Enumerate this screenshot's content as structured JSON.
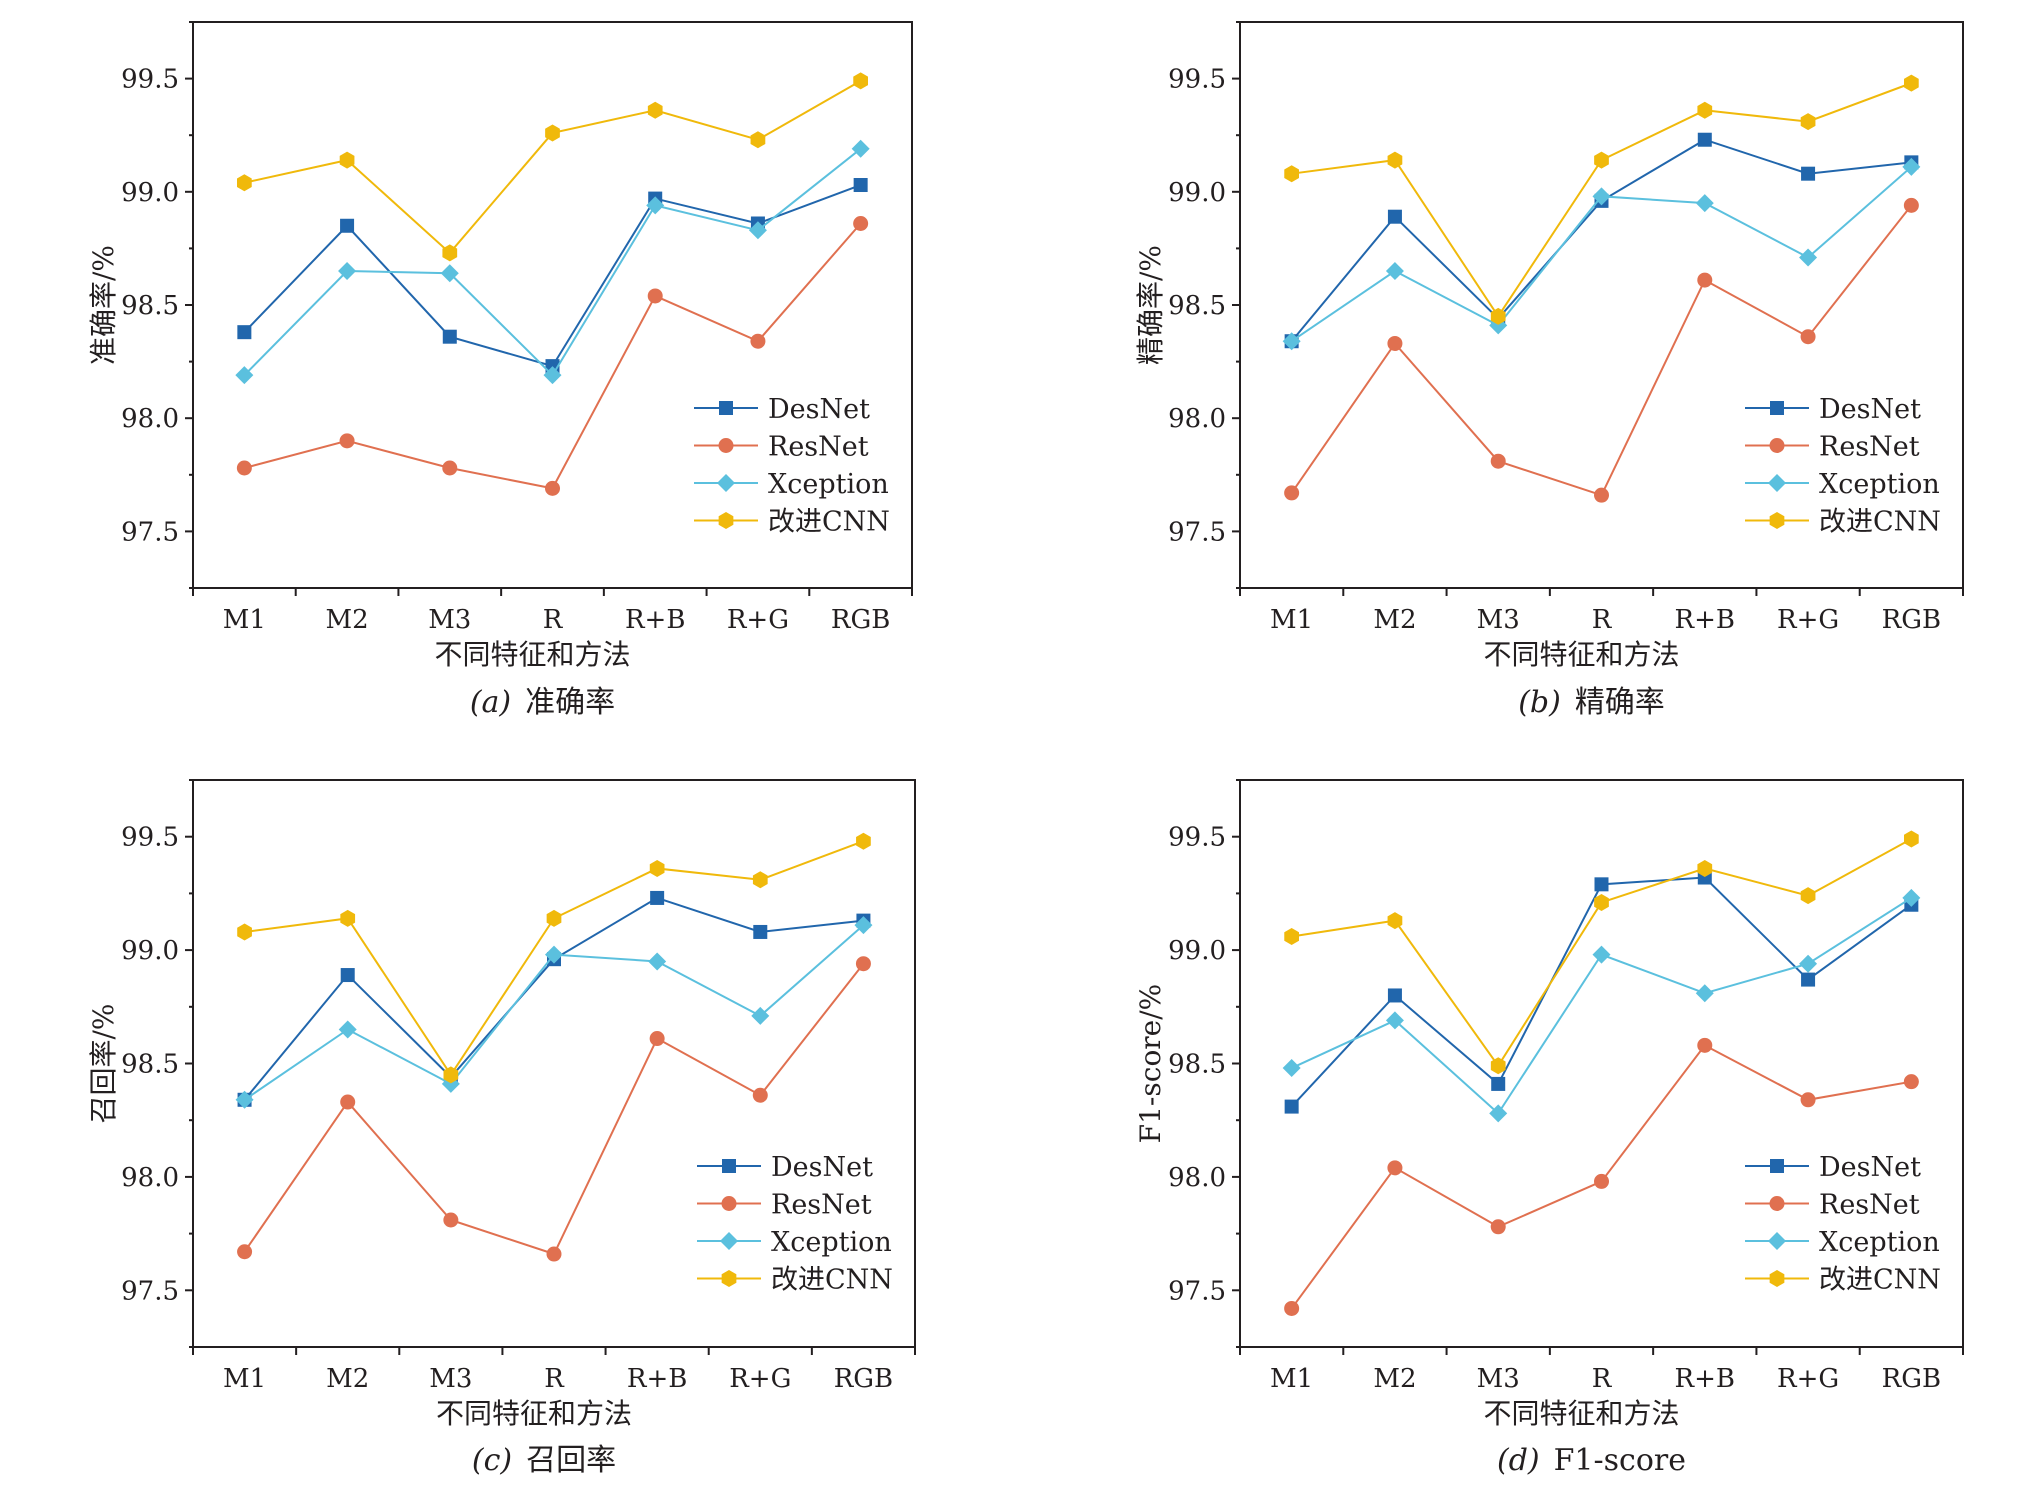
{
  "figure": {
    "series_colors": {
      "DesNet": "#2166ac",
      "ResNet": "#e07050",
      "Xception": "#5bc0de",
      "改进CNN": "#f0b90b"
    }
  },
  "chart_data": [
    {
      "type": "line",
      "caption_letter": "(a)",
      "caption_text": "准确率",
      "xlabel": "不同特征和方法",
      "ylabel": "准确率/%",
      "categories": [
        "M1",
        "M2",
        "M3",
        "R",
        "R+B",
        "R+G",
        "RGB"
      ],
      "ylim": [
        97.25,
        99.75
      ],
      "yticks": [
        "97.5",
        "98.0",
        "98.5",
        "99.0",
        "99.5"
      ],
      "legend_position": "bottom-right",
      "series": [
        {
          "name": "DesNet",
          "marker": "square",
          "values": [
            98.38,
            98.85,
            98.36,
            98.23,
            98.97,
            98.86,
            99.03
          ]
        },
        {
          "name": "ResNet",
          "marker": "circle",
          "values": [
            97.78,
            97.9,
            97.78,
            97.69,
            98.54,
            98.34,
            98.86
          ]
        },
        {
          "name": "Xception",
          "marker": "diamond",
          "values": [
            98.19,
            98.65,
            98.64,
            98.19,
            98.94,
            98.83,
            99.19
          ]
        },
        {
          "name": "改进CNN",
          "marker": "hexagon",
          "values": [
            99.04,
            99.14,
            98.73,
            99.26,
            99.36,
            99.23,
            99.49
          ]
        }
      ]
    },
    {
      "type": "line",
      "caption_letter": "(b)",
      "caption_text": "精确率",
      "xlabel": "不同特征和方法",
      "ylabel": "精确率/%",
      "categories": [
        "M1",
        "M2",
        "M3",
        "R",
        "R+B",
        "R+G",
        "RGB"
      ],
      "ylim": [
        97.25,
        99.75
      ],
      "yticks": [
        "97.5",
        "98.0",
        "98.5",
        "99.0",
        "99.5"
      ],
      "legend_position": "bottom-right",
      "series": [
        {
          "name": "DesNet",
          "marker": "square",
          "values": [
            98.34,
            98.89,
            98.44,
            98.96,
            99.23,
            99.08,
            99.13
          ]
        },
        {
          "name": "ResNet",
          "marker": "circle",
          "values": [
            97.67,
            98.33,
            97.81,
            97.66,
            98.61,
            98.36,
            98.94
          ]
        },
        {
          "name": "Xception",
          "marker": "diamond",
          "values": [
            98.34,
            98.65,
            98.41,
            98.98,
            98.95,
            98.71,
            99.11
          ]
        },
        {
          "name": "改进CNN",
          "marker": "hexagon",
          "values": [
            99.08,
            99.14,
            98.45,
            99.14,
            99.36,
            99.31,
            99.48
          ]
        }
      ]
    },
    {
      "type": "line",
      "caption_letter": "(c)",
      "caption_text": "召回率",
      "xlabel": "不同特征和方法",
      "ylabel": "召回率/%",
      "categories": [
        "M1",
        "M2",
        "M3",
        "R",
        "R+B",
        "R+G",
        "RGB"
      ],
      "ylim": [
        97.25,
        99.75
      ],
      "yticks": [
        "97.5",
        "98.0",
        "98.5",
        "99.0",
        "99.5"
      ],
      "legend_position": "bottom-right",
      "series": [
        {
          "name": "DesNet",
          "marker": "square",
          "values": [
            98.34,
            98.89,
            98.44,
            98.96,
            99.23,
            99.08,
            99.13
          ]
        },
        {
          "name": "ResNet",
          "marker": "circle",
          "values": [
            97.67,
            98.33,
            97.81,
            97.66,
            98.61,
            98.36,
            98.94
          ]
        },
        {
          "name": "Xception",
          "marker": "diamond",
          "values": [
            98.34,
            98.65,
            98.41,
            98.98,
            98.95,
            98.71,
            99.11
          ]
        },
        {
          "name": "改进CNN",
          "marker": "hexagon",
          "values": [
            99.08,
            99.14,
            98.45,
            99.14,
            99.36,
            99.31,
            99.48
          ]
        }
      ]
    },
    {
      "type": "line",
      "caption_letter": "(d)",
      "caption_text": "F1-score",
      "xlabel": "不同特征和方法",
      "ylabel": "F1-score/%",
      "categories": [
        "M1",
        "M2",
        "M3",
        "R",
        "R+B",
        "R+G",
        "RGB"
      ],
      "ylim": [
        97.25,
        99.75
      ],
      "yticks": [
        "97.5",
        "98.0",
        "98.5",
        "99.0",
        "99.5"
      ],
      "legend_position": "bottom-right",
      "series": [
        {
          "name": "DesNet",
          "marker": "square",
          "values": [
            98.31,
            98.8,
            98.41,
            99.29,
            99.32,
            98.87,
            99.2
          ]
        },
        {
          "name": "ResNet",
          "marker": "circle",
          "values": [
            97.42,
            98.04,
            97.78,
            97.98,
            98.58,
            98.34,
            98.42
          ]
        },
        {
          "name": "Xception",
          "marker": "diamond",
          "values": [
            98.48,
            98.69,
            98.28,
            98.98,
            98.81,
            98.94,
            99.23
          ]
        },
        {
          "name": "改进CNN",
          "marker": "hexagon",
          "values": [
            99.06,
            99.13,
            98.49,
            99.21,
            99.36,
            99.24,
            99.49
          ]
        }
      ]
    }
  ]
}
